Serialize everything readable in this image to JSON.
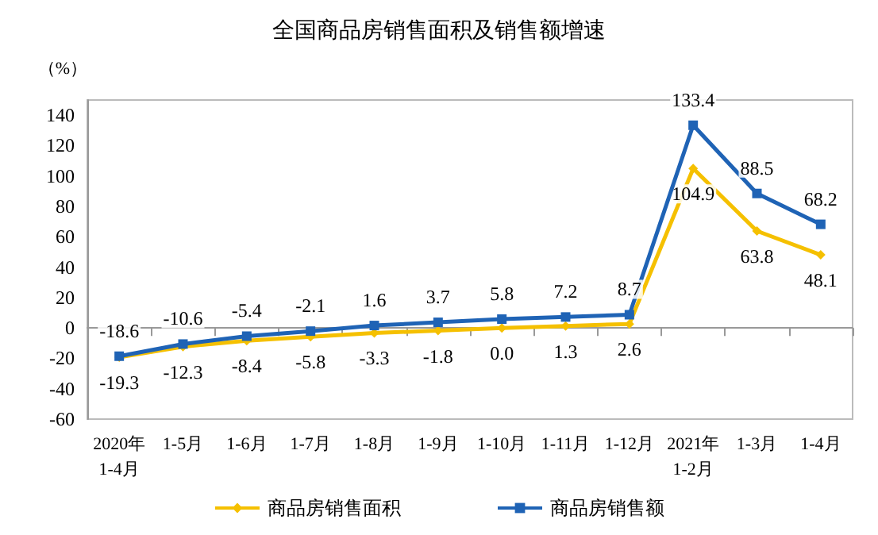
{
  "chart_data": {
    "type": "line",
    "title": "全国商品房销售面积及销售额增速",
    "ylabel": "（%）",
    "categories": [
      "2020年\n1-4月",
      "1-5月",
      "1-6月",
      "1-7月",
      "1-8月",
      "1-9月",
      "1-10月",
      "1-11月",
      "1-12月",
      "2021年\n1-2月",
      "1-3月",
      "1-4月"
    ],
    "series": [
      {
        "name": "商品房销售面积",
        "color": "#f5c000",
        "marker": "diamond",
        "values": [
          -19.3,
          -12.3,
          -8.4,
          -5.8,
          -3.3,
          -1.8,
          0.0,
          1.3,
          2.6,
          104.9,
          63.8,
          48.1
        ],
        "value_labels": [
          "-19.3",
          "-12.3",
          "-8.4",
          "-5.8",
          "-3.3",
          "-1.8",
          "0.0",
          "1.3",
          "2.6",
          "104.9",
          "63.8",
          "48.1"
        ]
      },
      {
        "name": "商品房销售额",
        "color": "#1f63b5",
        "marker": "square",
        "values": [
          -18.6,
          -10.6,
          -5.4,
          -2.1,
          1.6,
          3.7,
          5.8,
          7.2,
          8.7,
          133.4,
          88.5,
          68.2
        ],
        "value_labels": [
          "-18.6",
          "-10.6",
          "-5.4",
          "-2.1",
          "1.6",
          "3.7",
          "5.8",
          "7.2",
          "8.7",
          "133.4",
          "88.5",
          "68.2"
        ]
      }
    ],
    "ylim": [
      -60,
      150
    ],
    "yticks": [
      -60,
      -40,
      -20,
      0,
      20,
      40,
      60,
      80,
      100,
      120,
      140
    ],
    "legend": "bottom"
  }
}
